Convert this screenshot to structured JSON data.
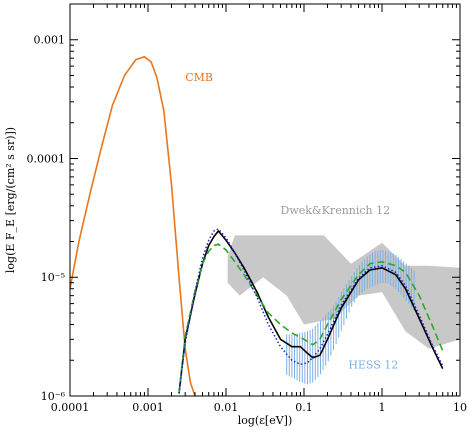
{
  "chart_data": {
    "type": "line",
    "title": "",
    "xlabel": "log(ε[eV])",
    "ylabel": "log(E F_E [erg/(cm² s sr)])",
    "x_scale": "log",
    "y_scale": "log",
    "xlim": [
      0.0001,
      10
    ],
    "ylim": [
      1e-06,
      0.002
    ],
    "x_ticks": [
      {
        "value": 0.0001,
        "label": "0.0001"
      },
      {
        "value": 0.001,
        "label": "0.001"
      },
      {
        "value": 0.01,
        "label": "0.01"
      },
      {
        "value": 0.1,
        "label": "0.1"
      },
      {
        "value": 1,
        "label": "1"
      },
      {
        "value": 10,
        "label": "10"
      }
    ],
    "y_ticks": [
      {
        "value": 1e-06,
        "label": "10⁻⁶"
      },
      {
        "value": 1e-05,
        "label": "10⁻⁵"
      },
      {
        "value": 0.0001,
        "label": "0.0001"
      },
      {
        "value": 0.001,
        "label": "0.001"
      }
    ],
    "grid": false,
    "annotations": [
      {
        "text": "CMB",
        "color": "#e8761e",
        "x": 0.003,
        "y": 0.00045
      },
      {
        "text": "Dwek&Krennich 12",
        "color": "#9a9a9a",
        "x": 0.05,
        "y": 3.4e-05
      },
      {
        "text": "HESS 12",
        "color": "#7ab0e6",
        "x": 0.37,
        "y": 1.7e-06
      }
    ],
    "dwek_band": {
      "color": "#c8c8c8",
      "upper": [
        [
          0.0105,
          1.5e-05
        ],
        [
          0.013,
          2.25e-05
        ],
        [
          0.06,
          2.25e-05
        ],
        [
          0.18,
          2.25e-05
        ],
        [
          0.4,
          1.3e-05
        ],
        [
          1.0,
          1.95e-05
        ],
        [
          2.0,
          1.25e-05
        ],
        [
          4.0,
          1.25e-05
        ],
        [
          10.0,
          1.2e-05
        ]
      ],
      "lower": [
        [
          10.0,
          3e-06
        ],
        [
          4.0,
          2.5e-06
        ],
        [
          2.0,
          3.5e-06
        ],
        [
          1.0,
          7.5e-06
        ],
        [
          0.5,
          7e-06
        ],
        [
          0.25,
          4.5e-06
        ],
        [
          0.1,
          4e-06
        ],
        [
          0.06,
          7e-06
        ],
        [
          0.03,
          1e-05
        ],
        [
          0.015,
          7e-06
        ],
        [
          0.0105,
          9e-06
        ]
      ]
    },
    "series": [
      {
        "name": "CMB",
        "color": "#e8761e",
        "style": "solid",
        "x": [
          0.0001,
          0.00013,
          0.00018,
          0.00025,
          0.00035,
          0.0005,
          0.0007,
          0.0009,
          0.0011,
          0.0013,
          0.0016,
          0.002,
          0.0025,
          0.003,
          0.0035,
          0.004
        ],
        "y": [
          8e-06,
          2e-05,
          5e-05,
          0.00012,
          0.00028,
          0.0005,
          0.00068,
          0.00072,
          0.00065,
          0.00048,
          0.00025,
          6e-05,
          1e-05,
          2.5e-06,
          1.3e-06,
          1e-06
        ]
      },
      {
        "color": "#000000",
        "style": "solid",
        "x": [
          0.0025,
          0.003,
          0.004,
          0.005,
          0.006,
          0.007,
          0.008,
          0.01,
          0.013,
          0.017,
          0.025,
          0.035,
          0.05,
          0.07,
          0.09,
          0.11,
          0.13,
          0.16,
          0.2,
          0.3,
          0.5,
          0.7,
          1.0,
          1.5,
          2.0,
          3.0,
          4.5,
          6.0
        ],
        "y": [
          1.05e-06,
          3e-06,
          7.2e-06,
          1.3e-05,
          1.85e-05,
          2.2e-05,
          2.45e-05,
          2.05e-05,
          1.6e-05,
          1.2e-05,
          7.5e-06,
          4.6e-06,
          3e-06,
          2.6e-06,
          2.6e-06,
          2.3e-06,
          2.1e-06,
          2.2e-06,
          3e-06,
          5.5e-06,
          9.5e-06,
          1.15e-05,
          1.2e-05,
          1.05e-05,
          8e-06,
          4.5e-06,
          2.5e-06,
          1.7e-06
        ]
      },
      {
        "color": "#2aa82a",
        "style": "dashed",
        "x": [
          0.0025,
          0.003,
          0.004,
          0.005,
          0.006,
          0.007,
          0.008,
          0.01,
          0.013,
          0.017,
          0.025,
          0.035,
          0.05,
          0.07,
          0.1,
          0.13,
          0.16,
          0.2,
          0.3,
          0.5,
          0.7,
          1.0,
          1.5,
          2.0,
          3.0,
          4.5,
          6.0
        ],
        "y": [
          1.05e-06,
          3.2e-06,
          7.6e-06,
          1.3e-05,
          1.65e-05,
          1.85e-05,
          1.9e-05,
          1.7e-05,
          1.35e-05,
          1.05e-05,
          7e-06,
          5e-06,
          4e-06,
          3.4e-06,
          3e-06,
          2.7e-06,
          3e-06,
          4e-06,
          6.5e-06,
          1.05e-05,
          1.3e-05,
          1.35e-05,
          1.25e-05,
          1.1e-05,
          7e-06,
          3.8e-06,
          2.4e-06
        ]
      },
      {
        "color": "#2020c0",
        "style": "dotted",
        "x": [
          0.0025,
          0.003,
          0.004,
          0.005,
          0.006,
          0.007,
          0.008,
          0.01,
          0.013,
          0.017,
          0.025,
          0.035,
          0.05,
          0.07,
          0.09,
          0.11,
          0.13,
          0.16,
          0.2,
          0.3,
          0.5,
          0.7,
          1.0,
          1.5,
          2.0,
          3.0,
          4.5,
          6.0
        ],
        "y": [
          1.05e-06,
          2.8e-06,
          7.6e-06,
          1.45e-05,
          2.05e-05,
          2.45e-05,
          2.55e-05,
          2.15e-05,
          1.6e-05,
          1.15e-05,
          6.8e-06,
          4e-06,
          2.6e-06,
          2e-06,
          1.85e-06,
          1.9e-06,
          2.1e-06,
          2.5e-06,
          3.3e-06,
          5.8e-06,
          9.8e-06,
          1.2e-05,
          1.25e-05,
          1.1e-05,
          8.5e-06,
          4.8e-06,
          2.6e-06,
          1.8e-06
        ]
      }
    ],
    "hess_band": {
      "color": "#7ab0e6",
      "x": [
        0.06,
        0.075,
        0.09,
        0.11,
        0.13,
        0.16,
        0.2,
        0.25,
        0.3,
        0.4,
        0.5,
        0.65,
        0.8,
        1.0,
        1.2,
        1.5,
        1.8,
        2.2,
        2.7
      ],
      "low": [
        1.5e-06,
        1.4e-06,
        1.3e-06,
        1.25e-06,
        1.3e-06,
        1.5e-06,
        1.9e-06,
        2.6e-06,
        3.5e-06,
        5.5e-06,
        7e-06,
        8e-06,
        8.5e-06,
        9e-06,
        8.8e-06,
        8e-06,
        7e-06,
        6e-06,
        5e-06
      ],
      "high": [
        3.3e-06,
        3.3e-06,
        3.4e-06,
        3.5e-06,
        3.7e-06,
        4.3e-06,
        5e-06,
        6e-06,
        7.5e-06,
        1e-05,
        1.25e-05,
        1.5e-05,
        1.65e-05,
        1.7e-05,
        1.65e-05,
        1.55e-05,
        1.4e-05,
        1.25e-05,
        1.1e-05
      ]
    }
  }
}
